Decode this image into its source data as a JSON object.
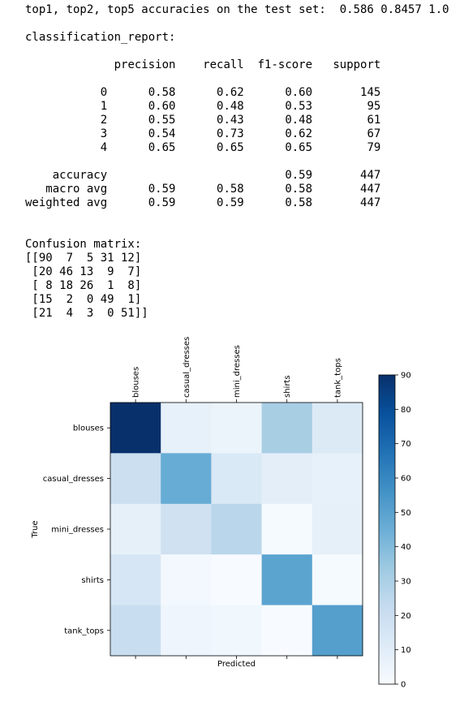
{
  "output": {
    "accuracy_line": "top1, top2, top5 accuracies on the test set:  0.586 0.8457 1.0",
    "report_title": "classification_report:",
    "report_header": [
      "precision",
      "recall",
      "f1-score",
      "support"
    ],
    "report_rows": [
      {
        "label": "0",
        "precision": "0.58",
        "recall": "0.62",
        "f1": "0.60",
        "support": "145"
      },
      {
        "label": "1",
        "precision": "0.60",
        "recall": "0.48",
        "f1": "0.53",
        "support": "95"
      },
      {
        "label": "2",
        "precision": "0.55",
        "recall": "0.43",
        "f1": "0.48",
        "support": "61"
      },
      {
        "label": "3",
        "precision": "0.54",
        "recall": "0.73",
        "f1": "0.62",
        "support": "67"
      },
      {
        "label": "4",
        "precision": "0.65",
        "recall": "0.65",
        "f1": "0.65",
        "support": "79"
      }
    ],
    "report_summary": [
      {
        "label": "accuracy",
        "precision": "",
        "recall": "",
        "f1": "0.59",
        "support": "447"
      },
      {
        "label": "macro avg",
        "precision": "0.59",
        "recall": "0.58",
        "f1": "0.58",
        "support": "447"
      },
      {
        "label": "weighted avg",
        "precision": "0.59",
        "recall": "0.59",
        "f1": "0.58",
        "support": "447"
      }
    ],
    "confusion_title": "Confusion matrix:",
    "confusion_text": [
      "[[90  7  5 31 12]",
      " [20 46 13  9  7]",
      " [ 8 18 26  1  8]",
      " [15  2  0 49  1]",
      " [21  4  3  0 51]]"
    ]
  },
  "chart_data": {
    "type": "heatmap",
    "classes": [
      "blouses",
      "casual_dresses",
      "mini_dresses",
      "shirts",
      "tank_tops"
    ],
    "matrix": [
      [
        90,
        7,
        5,
        31,
        12
      ],
      [
        20,
        46,
        13,
        9,
        7
      ],
      [
        8,
        18,
        26,
        1,
        8
      ],
      [
        15,
        2,
        0,
        49,
        1
      ],
      [
        21,
        4,
        3,
        0,
        51
      ]
    ],
    "xlabel": "Predicted",
    "ylabel": "True",
    "colormap": "Blues",
    "colorbar_range": [
      0,
      90
    ],
    "colorbar_ticks": [
      "0",
      "10",
      "20",
      "30",
      "40",
      "50",
      "60",
      "70",
      "80",
      "90"
    ]
  }
}
